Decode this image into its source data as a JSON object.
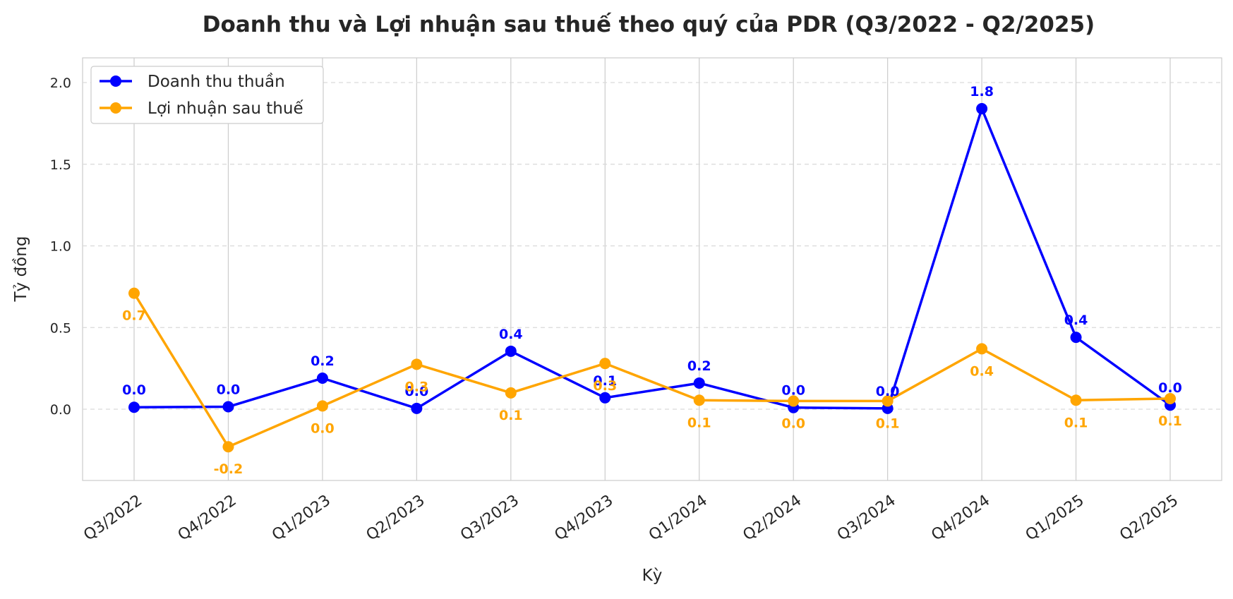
{
  "chart_data": {
    "type": "line",
    "title": "Doanh thu và Lợi nhuận sau thuế theo quý của PDR (Q3/2022 - Q2/2025)",
    "xlabel": "Kỳ",
    "ylabel": "Tỷ đồng",
    "ylim": [
      -0.43,
      2.15
    ],
    "yticks": [
      "0.0",
      "0.5",
      "1.0",
      "1.5",
      "2.0"
    ],
    "ytick_values": [
      0.0,
      0.5,
      1.0,
      1.5,
      2.0
    ],
    "grid": true,
    "legend_position": "top-left",
    "categories": [
      "Q3/2022",
      "Q4/2022",
      "Q1/2023",
      "Q2/2023",
      "Q3/2023",
      "Q4/2023",
      "Q1/2024",
      "Q2/2024",
      "Q3/2024",
      "Q4/2024",
      "Q1/2025",
      "Q2/2025"
    ],
    "series": [
      {
        "name": "Doanh thu thuần",
        "color": "#0000ff",
        "values": [
          0.012,
          0.015,
          0.19,
          0.005,
          0.355,
          0.07,
          0.16,
          0.01,
          0.005,
          1.84,
          0.44,
          0.025
        ],
        "labels": [
          "0.0",
          "0.0",
          "0.2",
          "0.0",
          "0.4",
          "0.1",
          "0.2",
          "0.0",
          "0.0",
          "1.8",
          "0.4",
          "0.0"
        ],
        "label_side": "above"
      },
      {
        "name": "Lợi nhuận sau thuế",
        "color": "#ffa500",
        "values": [
          0.71,
          -0.23,
          0.02,
          0.275,
          0.1,
          0.28,
          0.055,
          0.05,
          0.05,
          0.37,
          0.055,
          0.065
        ],
        "labels": [
          "0.7",
          "-0.2",
          "0.0",
          "0.3",
          "0.1",
          "0.3",
          "0.1",
          "0.0",
          "0.1",
          "0.4",
          "0.1",
          "0.1"
        ],
        "label_side": "below"
      }
    ]
  }
}
